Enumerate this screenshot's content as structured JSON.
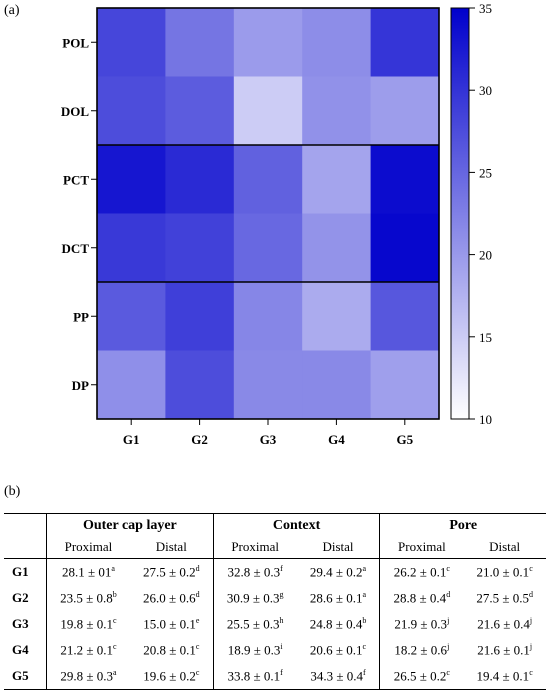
{
  "panels": {
    "a": "(a)",
    "b": "(b)"
  },
  "chart_data": {
    "type": "heatmap",
    "rows": [
      "POL",
      "DOL",
      "PCT",
      "DCT",
      "PP",
      "DP"
    ],
    "cols": [
      "G1",
      "G2",
      "G3",
      "G4",
      "G5"
    ],
    "values": [
      [
        28.1,
        23.5,
        19.8,
        21.2,
        29.8
      ],
      [
        27.5,
        26.0,
        15.0,
        20.8,
        19.6
      ],
      [
        32.8,
        30.9,
        25.5,
        18.9,
        33.8
      ],
      [
        29.4,
        28.6,
        24.8,
        20.6,
        34.3
      ],
      [
        26.2,
        28.8,
        21.9,
        18.2,
        26.5
      ],
      [
        21.0,
        27.5,
        21.6,
        21.6,
        19.4
      ]
    ],
    "colorbar": {
      "min": 10,
      "max": 35,
      "ticks": [
        10,
        15,
        20,
        25,
        30,
        35
      ],
      "low_color": "#ffffff",
      "high_color": "#0000cc"
    },
    "group_dividers_after_row": [
      1,
      3
    ]
  },
  "table": {
    "groups": [
      "Outer cap layer",
      "Context",
      "Pore"
    ],
    "subheaders": [
      "Proximal",
      "Distal",
      "Proximal",
      "Distal",
      "Proximal",
      "Distal"
    ],
    "rows": [
      {
        "label": "G1",
        "cells": [
          {
            "v": "28.1 ± 01",
            "s": "a"
          },
          {
            "v": "27.5 ± 0.2",
            "s": "d"
          },
          {
            "v": "32.8 ± 0.3",
            "s": "f"
          },
          {
            "v": "29.4 ± 0.2",
            "s": "a"
          },
          {
            "v": "26.2 ± 0.1",
            "s": "c"
          },
          {
            "v": "21.0 ± 0.1",
            "s": "c"
          }
        ]
      },
      {
        "label": "G2",
        "cells": [
          {
            "v": "23.5 ± 0.8",
            "s": "b"
          },
          {
            "v": "26.0 ± 0.6",
            "s": "d"
          },
          {
            "v": "30.9 ± 0.3",
            "s": "g"
          },
          {
            "v": "28.6 ± 0.1",
            "s": "a"
          },
          {
            "v": "28.8 ± 0.4",
            "s": "d"
          },
          {
            "v": "27.5 ± 0.5",
            "s": "d"
          }
        ]
      },
      {
        "label": "G3",
        "cells": [
          {
            "v": "19.8 ± 0.1",
            "s": "c"
          },
          {
            "v": "15.0 ± 0.1",
            "s": "e"
          },
          {
            "v": "25.5 ± 0.3",
            "s": "h"
          },
          {
            "v": "24.8 ± 0.4",
            "s": "b"
          },
          {
            "v": "21.9 ± 0.3",
            "s": "j"
          },
          {
            "v": "21.6 ± 0.4",
            "s": "j"
          }
        ]
      },
      {
        "label": "G4",
        "cells": [
          {
            "v": "21.2 ± 0.1",
            "s": "c"
          },
          {
            "v": "20.8 ± 0.1",
            "s": "c"
          },
          {
            "v": "18.9 ± 0.3",
            "s": "i"
          },
          {
            "v": "20.6 ± 0.1",
            "s": "c"
          },
          {
            "v": "18.2 ± 0.6",
            "s": "j"
          },
          {
            "v": "21.6 ± 0.1",
            "s": "j"
          }
        ]
      },
      {
        "label": "G5",
        "cells": [
          {
            "v": "29.8 ± 0.3",
            "s": "a"
          },
          {
            "v": "19.6 ± 0.2",
            "s": "c"
          },
          {
            "v": "33.8 ± 0.1",
            "s": "f"
          },
          {
            "v": "34.3 ± 0.4",
            "s": "f"
          },
          {
            "v": "26.5 ± 0.2",
            "s": "c"
          },
          {
            "v": "19.4 ± 0.1",
            "s": "c"
          }
        ]
      }
    ]
  }
}
